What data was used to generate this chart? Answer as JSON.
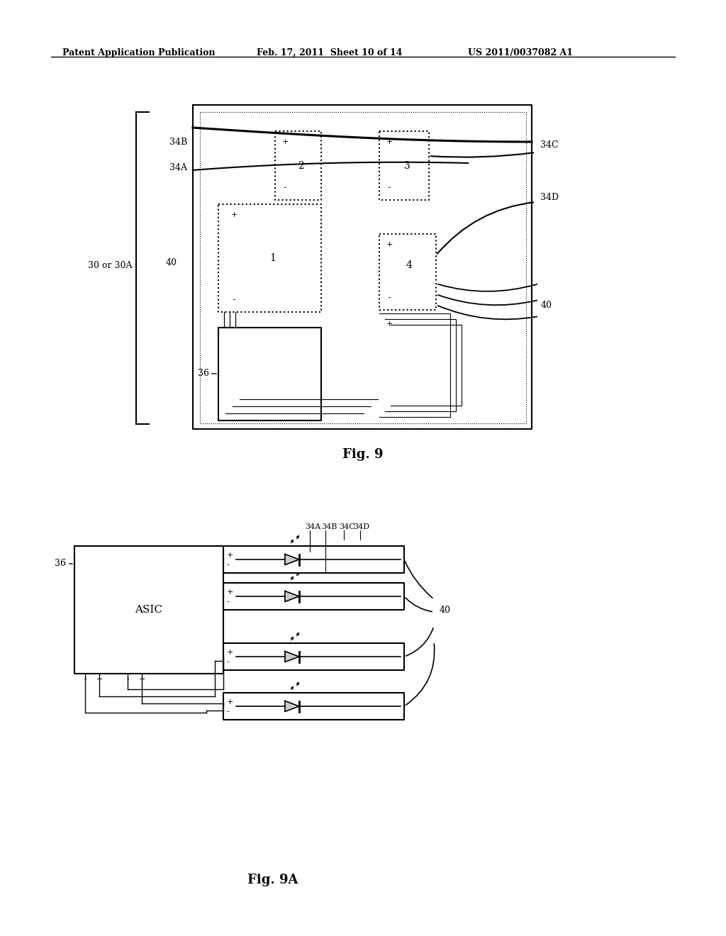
{
  "header_left": "Patent Application Publication",
  "header_middle": "Feb. 17, 2011  Sheet 10 of 14",
  "header_right": "US 2011/0037082 A1",
  "fig9_title": "Fig. 9",
  "fig9a_title": "Fig. 9A",
  "bg_color": "#ffffff",
  "line_color": "#000000",
  "fig9": {
    "label_30": "30 or 30A",
    "label_36": "36",
    "label_40_left": "40",
    "label_40_right": "40",
    "label_34A": "34A",
    "label_34B": "34B",
    "label_34C": "34C",
    "label_34D": "34D"
  },
  "fig9a": {
    "asic_label": "ASIC",
    "label_36": "36",
    "label_40": "40",
    "label_34A": "34A",
    "label_34B": "34B",
    "label_34C": "34C",
    "label_34D": "34D"
  }
}
